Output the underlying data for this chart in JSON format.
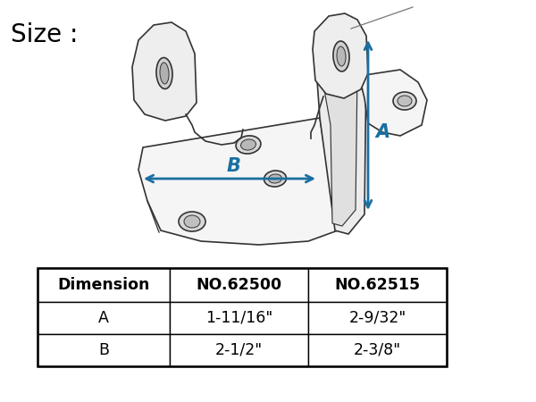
{
  "title": "Size :",
  "title_fontsize": 20,
  "title_color": "#000000",
  "arrow_color": "#1a6fa0",
  "label_A": "A",
  "label_B": "B",
  "table_headers": [
    "Dimension",
    "NO.62500",
    "NO.62515"
  ],
  "table_rows": [
    [
      "A",
      "1-11/16\"",
      "2-9/32\""
    ],
    [
      "B",
      "2-1/2\"",
      "2-3/8\""
    ]
  ],
  "bg_color": "#ffffff",
  "drawing_color": "#333333",
  "line_width": 1.2,
  "fill_color": "#f5f5f5",
  "fill_color2": "#eeeeee"
}
